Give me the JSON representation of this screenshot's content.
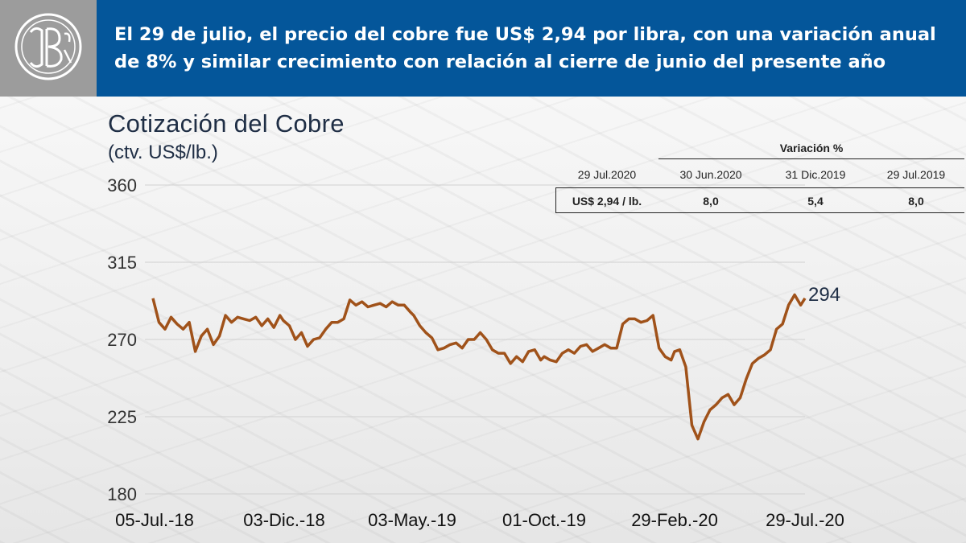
{
  "header": {
    "headline": "El 29 de julio, el precio del cobre fue US$ 2,94 por libra, con una variación anual de 8% y similar crecimiento con relación al cierre de junio del presente año",
    "header_color": "#04569a"
  },
  "chart_data": {
    "type": "line",
    "title": "Cotización del Cobre",
    "subtitle": "(ctv. US$/lb.)",
    "xlabel": "",
    "ylabel": "",
    "ylim": [
      180,
      360
    ],
    "yticks": [
      "360",
      "315",
      "270",
      "225",
      "180"
    ],
    "x_tick_labels": [
      "05-Jul.-18",
      "03-Dic.-18",
      "03-May.-19",
      "01-Oct.-19",
      "29-Feb.-20",
      "29-Jul.-20"
    ],
    "grid": true,
    "line_color": "#a0521a",
    "end_label": "294",
    "series": [
      {
        "x": [
          "2018-07-05",
          "2018-07-12",
          "2018-07-19",
          "2018-07-26",
          "2018-08-02",
          "2018-08-09",
          "2018-08-16",
          "2018-08-23",
          "2018-08-30",
          "2018-09-06",
          "2018-09-13",
          "2018-09-20",
          "2018-09-27",
          "2018-10-04",
          "2018-10-11",
          "2018-10-18",
          "2018-10-25",
          "2018-11-01",
          "2018-11-08",
          "2018-11-15",
          "2018-11-22",
          "2018-11-29",
          "2018-12-03",
          "2018-12-10",
          "2018-12-17",
          "2018-12-24",
          "2018-12-31",
          "2019-01-07",
          "2019-01-14",
          "2019-01-21",
          "2019-01-28",
          "2019-02-04",
          "2019-02-11",
          "2019-02-18",
          "2019-02-25",
          "2019-03-04",
          "2019-03-11",
          "2019-03-18",
          "2019-03-25",
          "2019-04-01",
          "2019-04-08",
          "2019-04-15",
          "2019-04-22",
          "2019-04-29",
          "2019-05-03",
          "2019-05-10",
          "2019-05-17",
          "2019-05-24",
          "2019-05-31",
          "2019-06-07",
          "2019-06-14",
          "2019-06-21",
          "2019-06-28",
          "2019-07-05",
          "2019-07-12",
          "2019-07-19",
          "2019-07-26",
          "2019-08-02",
          "2019-08-09",
          "2019-08-16",
          "2019-08-23",
          "2019-08-30",
          "2019-09-06",
          "2019-09-13",
          "2019-09-20",
          "2019-09-27",
          "2019-10-01",
          "2019-10-08",
          "2019-10-15",
          "2019-10-22",
          "2019-10-29",
          "2019-11-05",
          "2019-11-12",
          "2019-11-19",
          "2019-11-26",
          "2019-12-03",
          "2019-12-10",
          "2019-12-17",
          "2019-12-24",
          "2019-12-31",
          "2020-01-07",
          "2020-01-14",
          "2020-01-21",
          "2020-01-28",
          "2020-02-04",
          "2020-02-11",
          "2020-02-18",
          "2020-02-25",
          "2020-02-29",
          "2020-03-06",
          "2020-03-13",
          "2020-03-20",
          "2020-03-27",
          "2020-04-03",
          "2020-04-10",
          "2020-04-17",
          "2020-04-24",
          "2020-05-01",
          "2020-05-08",
          "2020-05-15",
          "2020-05-22",
          "2020-05-29",
          "2020-06-05",
          "2020-06-12",
          "2020-06-19",
          "2020-06-26",
          "2020-07-03",
          "2020-07-10",
          "2020-07-17",
          "2020-07-24",
          "2020-07-29"
        ],
        "y": [
          294,
          280,
          276,
          283,
          279,
          276,
          280,
          263,
          272,
          276,
          267,
          272,
          284,
          280,
          283,
          282,
          281,
          283,
          278,
          282,
          277,
          284,
          281,
          278,
          270,
          274,
          266,
          270,
          271,
          276,
          280,
          280,
          282,
          293,
          290,
          292,
          289,
          290,
          291,
          289,
          292,
          290,
          290,
          286,
          284,
          278,
          274,
          271,
          264,
          265,
          267,
          268,
          265,
          270,
          270,
          274,
          270,
          264,
          262,
          262,
          256,
          260,
          257,
          263,
          264,
          258,
          260,
          258,
          257,
          262,
          264,
          262,
          266,
          267,
          263,
          265,
          267,
          265,
          265,
          279,
          282,
          282,
          280,
          281,
          284,
          265,
          260,
          258,
          263,
          264,
          254,
          220,
          212,
          222,
          229,
          232,
          236,
          238,
          232,
          236,
          247,
          256,
          259,
          261,
          264,
          276,
          279,
          290,
          296,
          290,
          294
        ]
      }
    ]
  },
  "variation_table": {
    "title": "Variación %",
    "col_headers": [
      "29 Jul.2020",
      "30 Jun.2020",
      "31 Dic.2019",
      "29 Jul.2019"
    ],
    "row": [
      "US$ 2,94 / lb.",
      "8,0",
      "5,4",
      "8,0"
    ]
  }
}
